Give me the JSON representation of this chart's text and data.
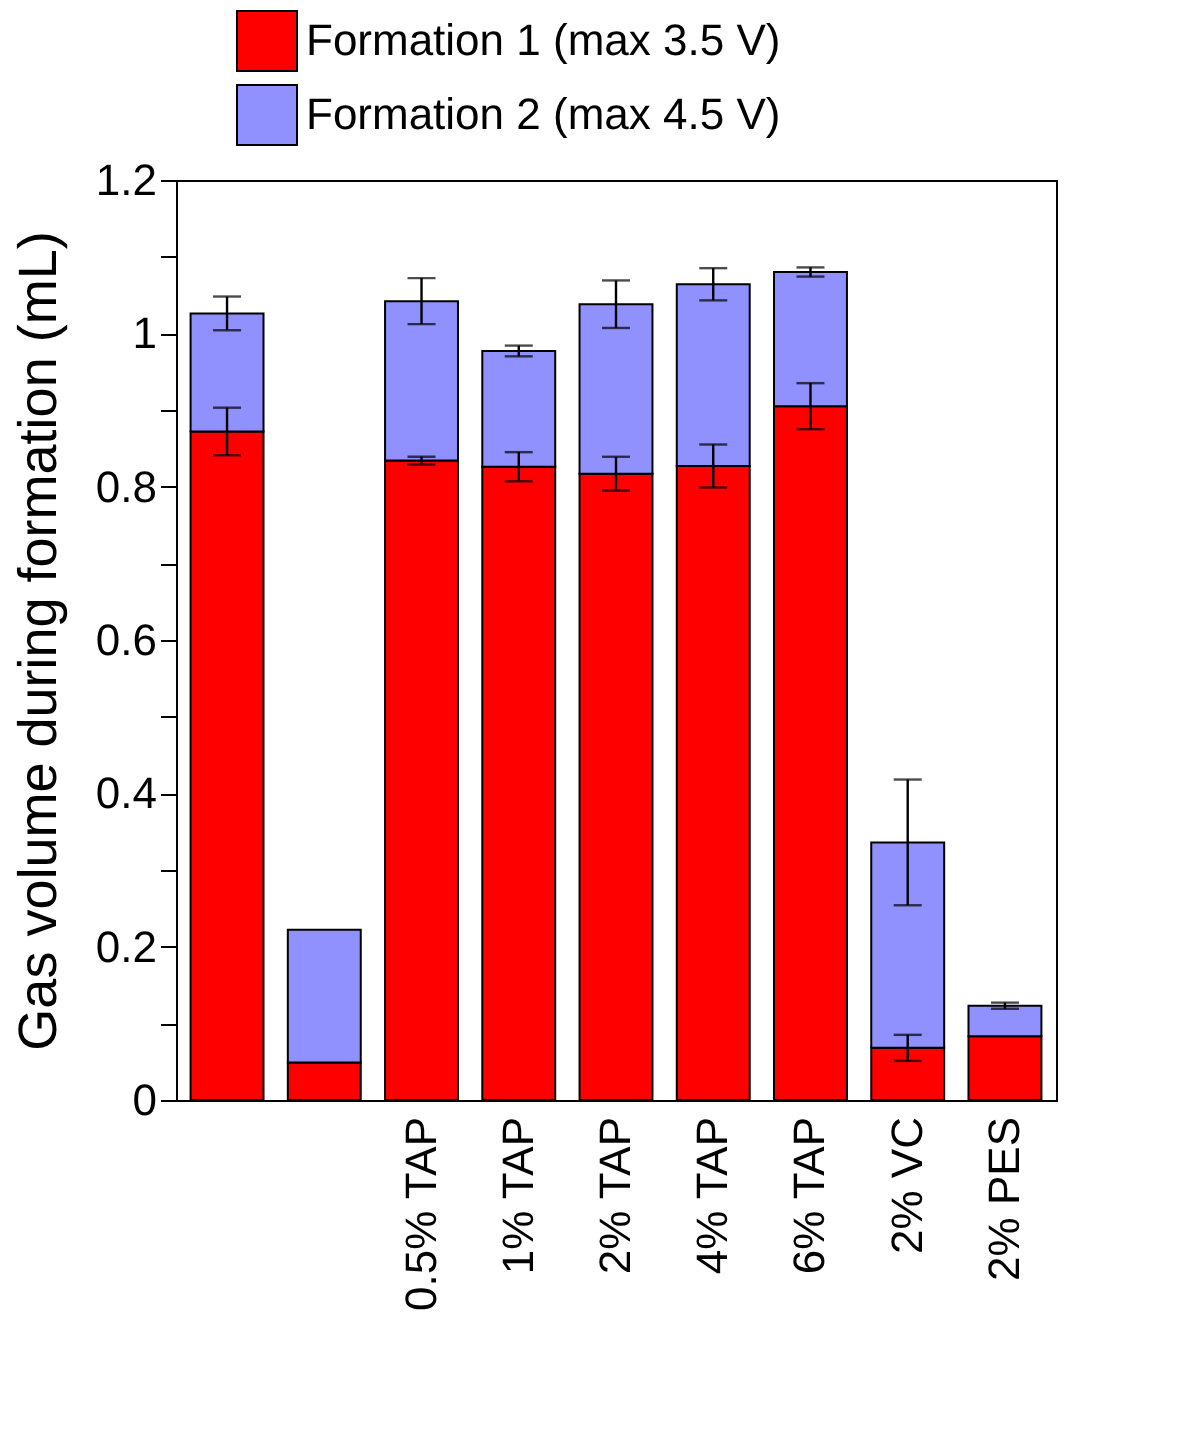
{
  "chart_data": {
    "type": "bar",
    "stacked": true,
    "ylabel": "Gas volume during formation (mL)",
    "categories": [
      null,
      null,
      "0.5% TAP",
      "1% TAP",
      "2% TAP",
      "4% TAP",
      "6% TAP",
      "2% VC",
      "2% PES"
    ],
    "series": [
      {
        "name": "Formation 1 (max 3.5 V)",
        "color": "#ff0000",
        "values": [
          0.872,
          0.049,
          0.834,
          0.826,
          0.817,
          0.827,
          0.905,
          0.068,
          0.083
        ],
        "errors": [
          0.031,
          null,
          0.005,
          0.019,
          0.022,
          0.028,
          0.03,
          0.017,
          null
        ]
      },
      {
        "name": "Formation 2 (max 4.5 V)",
        "color": "#9090ff",
        "values": [
          0.154,
          0.173,
          0.208,
          0.151,
          0.221,
          0.237,
          0.175,
          0.268,
          0.04
        ],
        "errors": [
          0.022,
          null,
          0.03,
          0.007,
          0.031,
          0.021,
          0.006,
          0.082,
          0.004
        ]
      }
    ],
    "ylim": [
      0,
      1.2
    ],
    "yticks": [
      0,
      {
        "value": 0.1,
        "label": null
      },
      0.2,
      {
        "value": 0.3,
        "label": null
      },
      0.4,
      {
        "value": 0.5,
        "label": null
      },
      0.6,
      {
        "value": 0.7,
        "label": null
      },
      0.8,
      {
        "value": 0.9,
        "label": null
      },
      1,
      {
        "value": 1.1,
        "label": null
      },
      1.2
    ],
    "legend": "top",
    "grid": false
  }
}
